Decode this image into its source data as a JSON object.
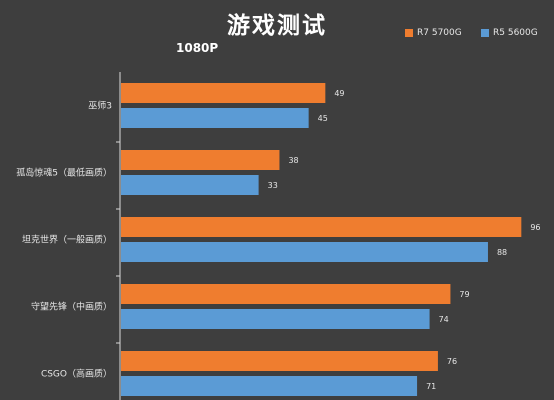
{
  "chart_data": {
    "type": "bar",
    "orientation": "horizontal",
    "title": "游戏测试",
    "subtitle": "1080P",
    "categories": [
      "巫师3",
      "孤岛惊魂5（最低画质）",
      "坦克世界（一般画质）",
      "守望先锋（中画质）",
      "CSGO（高画质）"
    ],
    "series": [
      {
        "name": "R7 5700G",
        "color": "#ef7d2f",
        "values": [
          49,
          38,
          96,
          79,
          76
        ]
      },
      {
        "name": "R5 5600G",
        "color": "#5b9bd5",
        "values": [
          45,
          33,
          88,
          74,
          71
        ]
      }
    ],
    "xlim": [
      0,
      100
    ],
    "legend_position": "top-right",
    "grid": false
  }
}
